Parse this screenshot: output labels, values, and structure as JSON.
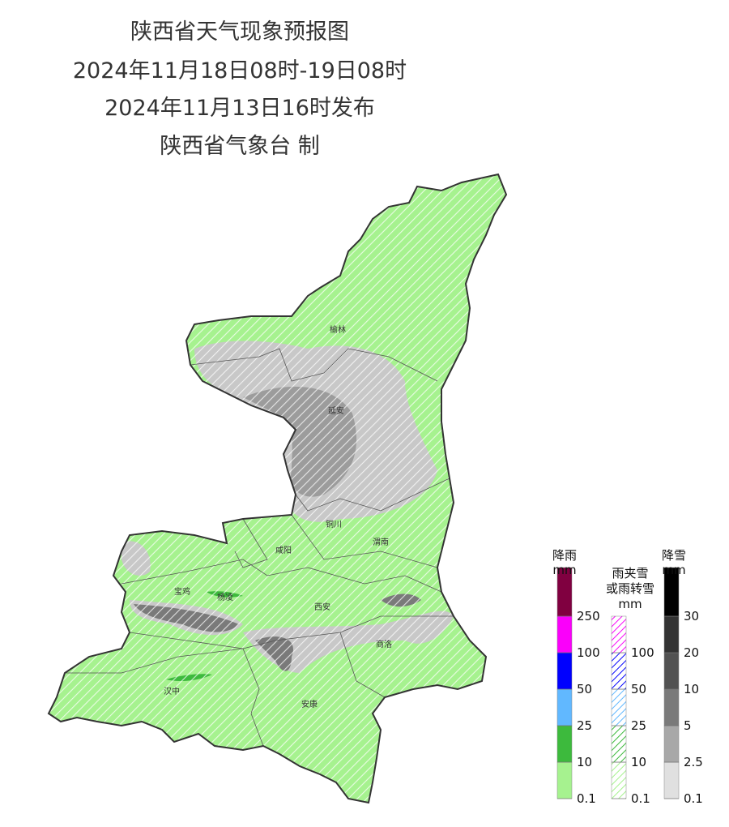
{
  "header": {
    "title": "陕西省天气现象预报图",
    "period": "2024年11月18日08时-19日08时",
    "issued": "2024年11月13日16时发布",
    "producer": "陕西省气象台 制"
  },
  "cities": [
    "榆林",
    "延安",
    "铜川",
    "渭南",
    "咸阳",
    "宝鸡",
    "杨凌",
    "西安",
    "商洛",
    "汉中",
    "安康"
  ],
  "legend": {
    "rain": {
      "title": "降雨",
      "unit": "mm",
      "ticks": [
        0.1,
        10,
        25,
        50,
        100,
        250
      ],
      "colors": [
        "#a6f28f",
        "#3dba3d",
        "#61b8ff",
        "#0000fe",
        "#fa00fa",
        "#800040"
      ]
    },
    "sleet": {
      "title": "雨夹雪",
      "title2": "或雨转雪",
      "unit": "mm",
      "ticks": [
        0.1,
        10,
        25,
        50,
        100
      ],
      "colors": [
        "#a6f28f",
        "#3dba3d",
        "#61b8ff",
        "#0000fe",
        "#fa00fa"
      ]
    },
    "snow": {
      "title": "降雪",
      "unit": "mm",
      "ticks": [
        0.1,
        2.5,
        5,
        10,
        20,
        30
      ],
      "colors": [
        "#e0e0e0",
        "#a8a8a8",
        "#7a7a7a",
        "#525252",
        "#333333",
        "#000000"
      ]
    }
  }
}
